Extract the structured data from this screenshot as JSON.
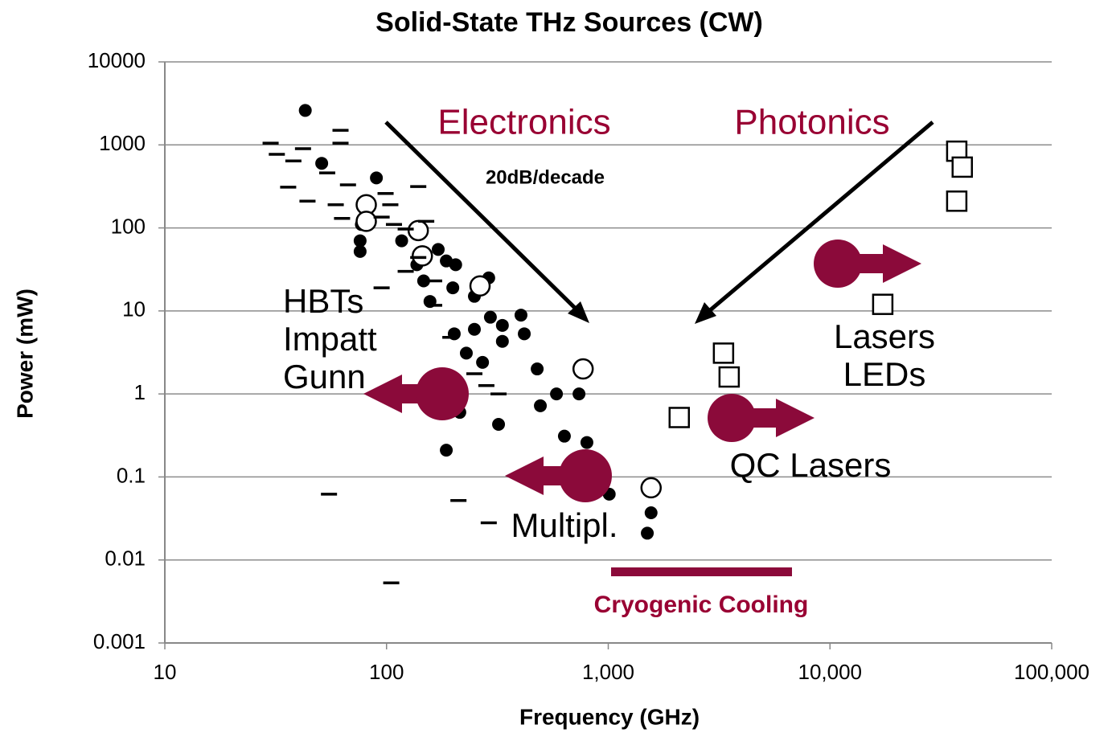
{
  "chart_data": {
    "type": "scatter",
    "title": "Solid-State THz Sources (CW)",
    "x_label": "Frequency (GHz)",
    "y_label": "Power (mW)",
    "x_log": true,
    "y_log": true,
    "grid": true,
    "xlim": [
      10,
      100000
    ],
    "ylim": [
      0.001,
      10000
    ],
    "xticks": [
      10,
      100,
      {
        "value": 1000,
        "label": "1,000"
      },
      {
        "value": 10000,
        "label": "10,000"
      },
      {
        "value": 100000,
        "label": "100,000"
      }
    ],
    "yticks": [
      0.001,
      0.01,
      0.1,
      1,
      10,
      100,
      1000,
      10000
    ],
    "series": [
      {
        "marker": "filled-circle",
        "color": "#000000",
        "x": [
          43,
          51,
          90,
          77,
          76,
          76,
          117,
          137,
          171,
          186,
          205,
          147,
          157,
          199,
          249,
          289,
          294,
          249,
          333,
          404,
          418,
          202,
          229,
          271,
          333,
          478,
          494,
          584,
          738,
          320,
          634,
          801,
          186,
          214,
          1010,
          1560,
          1500
        ],
        "values": [
          2600,
          600,
          400,
          110,
          70,
          52,
          70,
          36,
          55,
          40,
          36,
          23,
          13,
          19,
          15,
          25,
          8.4,
          6,
          6.7,
          8.9,
          5.3,
          5.3,
          3.1,
          2.4,
          4.3,
          2.0,
          0.72,
          1.0,
          1.0,
          0.43,
          0.31,
          0.26,
          0.21,
          0.6,
          0.062,
          0.037,
          0.021
        ]
      },
      {
        "marker": "open-circle",
        "color": "#000000",
        "x": [
          81,
          81,
          139,
          145,
          264,
          770,
          1560
        ],
        "values": [
          190,
          120,
          93,
          46,
          20,
          2.0,
          0.074
        ]
      },
      {
        "marker": "dash",
        "color": "#000000",
        "x": [
          30,
          32,
          38,
          42,
          36,
          44,
          62,
          62,
          54,
          67,
          59,
          63,
          99,
          104,
          95,
          108,
          139,
          122,
          151,
          139,
          122,
          164,
          95,
          164,
          194,
          249,
          282,
          320,
          55,
          211,
          289,
          105
        ],
        "values": [
          1050,
          770,
          640,
          900,
          310,
          210,
          1500,
          1050,
          460,
          330,
          190,
          130,
          260,
          190,
          135,
          110,
          315,
          97,
          120,
          44,
          30,
          23,
          19,
          11.7,
          4.8,
          1.75,
          1.26,
          1.0,
          0.062,
          0.052,
          0.028,
          0.0053
        ]
      },
      {
        "marker": "open-square",
        "color": "#000000",
        "x": [
          37300,
          39500,
          37300,
          17300,
          3310,
          3510,
          2090
        ],
        "values": [
          840,
          540,
          210,
          12,
          3.1,
          1.6,
          0.52
        ]
      }
    ],
    "annotations": {
      "electronics": "Electronics",
      "photonics": "Photonics",
      "slope": "20dB/decade",
      "hbts": "HBTs",
      "impatt": "Impatt",
      "gunn": "Gunn",
      "lasers": "Lasers",
      "leds": "LEDs",
      "qc_lasers": "QC Lasers",
      "multipl": "Multipl.",
      "cryogenic": "Cryogenic Cooling"
    }
  }
}
